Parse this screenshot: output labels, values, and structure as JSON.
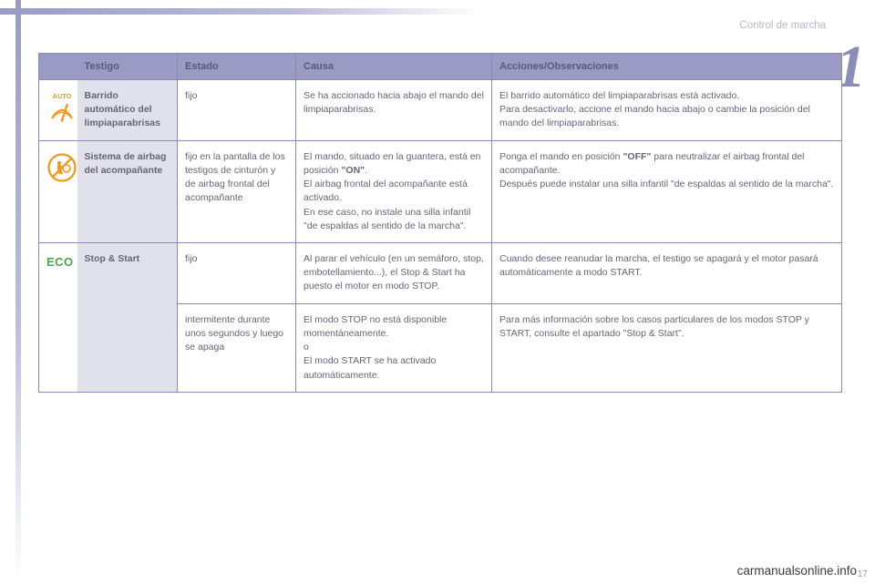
{
  "section_label": "Control de marcha",
  "chapter_number": "1",
  "footer": "carmanualsonline.info",
  "page_number": "17",
  "table": {
    "columns": [
      "Testigo",
      "Estado",
      "Causa",
      "Acciones/Observaciones"
    ],
    "rows": [
      {
        "icon": "auto-wiper-icon",
        "name": "Barrido automático del limpiaparabrisas",
        "state": "fijo",
        "cause": "Se ha accionado hacia abajo el mando del limpiaparabrisas.",
        "actions": "El barrido automático del limpiaparabrisas está activado.\nPara desactivarlo, accione el mando hacia abajo o cambie la posición del mando del limpiaparabrisas."
      },
      {
        "icon": "airbag-off-icon",
        "name": "Sistema de airbag del acompañante",
        "state": "fijo en la pantalla de los testigos de cinturón y de airbag frontal del acompañante",
        "cause_html": "El mando, situado en la guantera, está en posición <b>\"ON\"</b>.\nEl airbag frontal del acompañante está activado.\nEn ese caso, no instale una silla infantil \"de espaldas al sentido de la marcha\".",
        "actions_html": "Ponga el mando en posición <b>\"OFF\"</b> para neutralizar el airbag frontal del acompañante.\nDespués puede instalar una silla infantil \"de espaldas al sentido de la marcha\"."
      },
      {
        "icon": "eco-icon",
        "name": "Stop & Start",
        "state": "fijo",
        "cause": "Al parar el vehículo (en un semáforo, stop, embotellamiento...), el Stop & Start ha puesto el motor en modo STOP.",
        "actions": "Cuando desee reanudar la marcha, el testigo se apagará y el motor pasará automáticamente a modo START."
      },
      {
        "state": "intermitente durante unos segundos y luego se apaga",
        "cause": "El modo STOP no está disponible momentáneamente.\no\nEl modo START se ha activado automáticamente.",
        "actions": "Para más información sobre los casos particulares de los modos STOP y START, consulte el apartado \"Stop & Start\"."
      }
    ]
  },
  "icons": {
    "auto_label": "AUTO",
    "eco_label": "ECO",
    "colors": {
      "orange": "#f39a1e",
      "green": "#4aa54a"
    }
  }
}
